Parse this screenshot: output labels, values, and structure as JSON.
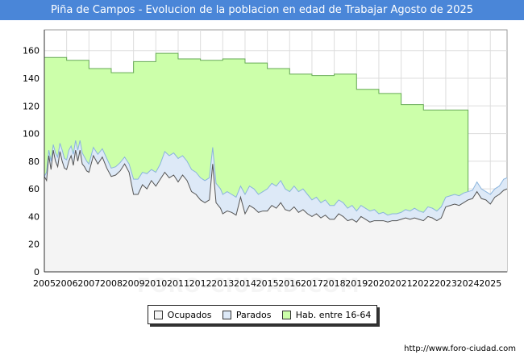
{
  "title": "Piña de Campos - Evolucion de la poblacion en edad de Trabajar Agosto de 2025",
  "watermark": "FORO-CIUDAD.COM",
  "source_url": "http://www.foro-ciudad.com",
  "colors": {
    "title_bg": "#4a86d8",
    "hab": "#ccffaa",
    "hab_line": "#66aa55",
    "parados": "#dde9f7",
    "parados_line": "#8ab4dd",
    "ocupados": "#f4f4f4",
    "ocupados_line": "#555555"
  },
  "chart_data": {
    "type": "area",
    "title": "Piña de Campos - Evolucion de la poblacion en edad de Trabajar Agosto de 2025",
    "x_range": [
      2005.0,
      2025.75
    ],
    "ylim": [
      0,
      175
    ],
    "y_ticks": [
      0,
      20,
      40,
      60,
      80,
      100,
      120,
      140,
      160
    ],
    "x_ticks": [
      "2005",
      "2006",
      "2007",
      "2008",
      "2009",
      "2010",
      "2011",
      "2012",
      "2013",
      "2014",
      "2015",
      "2016",
      "2017",
      "2018",
      "2019",
      "2020",
      "2021",
      "2022",
      "2023",
      "2024",
      "2025"
    ],
    "grid": true,
    "legend_position": "bottom",
    "series": [
      {
        "name": "Hab. entre 16-64",
        "step": true,
        "points": [
          [
            2005.0,
            155
          ],
          [
            2006.0,
            153
          ],
          [
            2007.0,
            147
          ],
          [
            2008.0,
            144
          ],
          [
            2009.0,
            152
          ],
          [
            2010.0,
            158
          ],
          [
            2011.0,
            154
          ],
          [
            2012.0,
            153
          ],
          [
            2013.0,
            154
          ],
          [
            2014.0,
            151
          ],
          [
            2015.0,
            147
          ],
          [
            2016.0,
            143
          ],
          [
            2017.0,
            142
          ],
          [
            2018.0,
            143
          ],
          [
            2019.0,
            132
          ],
          [
            2020.0,
            129
          ],
          [
            2021.0,
            121
          ],
          [
            2022.0,
            117
          ],
          [
            2023.0,
            117
          ]
        ],
        "end_x": 2024.0
      },
      {
        "name": "Parados",
        "points": [
          [
            2005.0,
            69
          ],
          [
            2005.1,
            72
          ],
          [
            2005.2,
            88
          ],
          [
            2005.3,
            80
          ],
          [
            2005.4,
            92
          ],
          [
            2005.5,
            86
          ],
          [
            2005.6,
            83
          ],
          [
            2005.7,
            93
          ],
          [
            2005.8,
            88
          ],
          [
            2005.9,
            82
          ],
          [
            2006.0,
            81
          ],
          [
            2006.1,
            88
          ],
          [
            2006.2,
            91
          ],
          [
            2006.3,
            85
          ],
          [
            2006.4,
            95
          ],
          [
            2006.5,
            88
          ],
          [
            2006.6,
            95
          ],
          [
            2006.7,
            86
          ],
          [
            2006.8,
            83
          ],
          [
            2006.9,
            80
          ],
          [
            2007.0,
            78
          ],
          [
            2007.2,
            90
          ],
          [
            2007.4,
            85
          ],
          [
            2007.6,
            89
          ],
          [
            2007.8,
            82
          ],
          [
            2008.0,
            75
          ],
          [
            2008.2,
            76
          ],
          [
            2008.4,
            79
          ],
          [
            2008.6,
            83
          ],
          [
            2008.8,
            78
          ],
          [
            2009.0,
            67
          ],
          [
            2009.2,
            67
          ],
          [
            2009.4,
            72
          ],
          [
            2009.6,
            71
          ],
          [
            2009.8,
            74
          ],
          [
            2010.0,
            72
          ],
          [
            2010.2,
            78
          ],
          [
            2010.4,
            87
          ],
          [
            2010.6,
            84
          ],
          [
            2010.8,
            86
          ],
          [
            2011.0,
            82
          ],
          [
            2011.2,
            84
          ],
          [
            2011.4,
            80
          ],
          [
            2011.6,
            74
          ],
          [
            2011.8,
            72
          ],
          [
            2012.0,
            68
          ],
          [
            2012.2,
            66
          ],
          [
            2012.4,
            68
          ],
          [
            2012.55,
            90
          ],
          [
            2012.7,
            64
          ],
          [
            2012.9,
            60
          ],
          [
            2013.0,
            56
          ],
          [
            2013.2,
            58
          ],
          [
            2013.4,
            56
          ],
          [
            2013.6,
            54
          ],
          [
            2013.8,
            62
          ],
          [
            2014.0,
            56
          ],
          [
            2014.2,
            62
          ],
          [
            2014.4,
            60
          ],
          [
            2014.6,
            56
          ],
          [
            2014.8,
            58
          ],
          [
            2015.0,
            60
          ],
          [
            2015.2,
            64
          ],
          [
            2015.4,
            62
          ],
          [
            2015.6,
            66
          ],
          [
            2015.8,
            60
          ],
          [
            2016.0,
            58
          ],
          [
            2016.2,
            62
          ],
          [
            2016.4,
            58
          ],
          [
            2016.6,
            60
          ],
          [
            2016.8,
            56
          ],
          [
            2017.0,
            52
          ],
          [
            2017.2,
            54
          ],
          [
            2017.4,
            50
          ],
          [
            2017.6,
            52
          ],
          [
            2017.8,
            48
          ],
          [
            2018.0,
            48
          ],
          [
            2018.2,
            52
          ],
          [
            2018.4,
            50
          ],
          [
            2018.6,
            46
          ],
          [
            2018.8,
            48
          ],
          [
            2019.0,
            44
          ],
          [
            2019.2,
            48
          ],
          [
            2019.4,
            46
          ],
          [
            2019.6,
            44
          ],
          [
            2019.8,
            45
          ],
          [
            2020.0,
            42
          ],
          [
            2020.2,
            43
          ],
          [
            2020.4,
            41
          ],
          [
            2020.6,
            42
          ],
          [
            2020.8,
            42
          ],
          [
            2021.0,
            43
          ],
          [
            2021.2,
            45
          ],
          [
            2021.4,
            44
          ],
          [
            2021.6,
            46
          ],
          [
            2021.8,
            44
          ],
          [
            2022.0,
            43
          ],
          [
            2022.2,
            47
          ],
          [
            2022.4,
            46
          ],
          [
            2022.6,
            44
          ],
          [
            2022.8,
            47
          ],
          [
            2023.0,
            54
          ],
          [
            2023.2,
            55
          ],
          [
            2023.4,
            56
          ],
          [
            2023.6,
            55
          ],
          [
            2023.8,
            57
          ],
          [
            2024.0,
            58
          ],
          [
            2024.2,
            59
          ],
          [
            2024.4,
            65
          ],
          [
            2024.6,
            60
          ],
          [
            2024.8,
            58
          ],
          [
            2025.0,
            56
          ],
          [
            2025.2,
            60
          ],
          [
            2025.4,
            62
          ],
          [
            2025.6,
            67
          ],
          [
            2025.75,
            68
          ]
        ]
      },
      {
        "name": "Ocupados",
        "points": [
          [
            2005.0,
            69
          ],
          [
            2005.1,
            66
          ],
          [
            2005.2,
            84
          ],
          [
            2005.3,
            74
          ],
          [
            2005.4,
            88
          ],
          [
            2005.5,
            80
          ],
          [
            2005.6,
            76
          ],
          [
            2005.7,
            87
          ],
          [
            2005.8,
            80
          ],
          [
            2005.9,
            75
          ],
          [
            2006.0,
            74
          ],
          [
            2006.1,
            80
          ],
          [
            2006.2,
            84
          ],
          [
            2006.3,
            77
          ],
          [
            2006.4,
            88
          ],
          [
            2006.5,
            80
          ],
          [
            2006.6,
            88
          ],
          [
            2006.7,
            78
          ],
          [
            2006.8,
            76
          ],
          [
            2006.9,
            73
          ],
          [
            2007.0,
            72
          ],
          [
            2007.2,
            84
          ],
          [
            2007.4,
            78
          ],
          [
            2007.6,
            83
          ],
          [
            2007.8,
            75
          ],
          [
            2008.0,
            69
          ],
          [
            2008.2,
            70
          ],
          [
            2008.4,
            73
          ],
          [
            2008.6,
            78
          ],
          [
            2008.8,
            72
          ],
          [
            2009.0,
            56
          ],
          [
            2009.2,
            56
          ],
          [
            2009.4,
            63
          ],
          [
            2009.6,
            60
          ],
          [
            2009.8,
            66
          ],
          [
            2010.0,
            62
          ],
          [
            2010.2,
            67
          ],
          [
            2010.4,
            72
          ],
          [
            2010.6,
            68
          ],
          [
            2010.8,
            70
          ],
          [
            2011.0,
            65
          ],
          [
            2011.2,
            70
          ],
          [
            2011.4,
            66
          ],
          [
            2011.6,
            58
          ],
          [
            2011.8,
            56
          ],
          [
            2012.0,
            52
          ],
          [
            2012.2,
            50
          ],
          [
            2012.4,
            52
          ],
          [
            2012.55,
            78
          ],
          [
            2012.7,
            50
          ],
          [
            2012.9,
            46
          ],
          [
            2013.0,
            42
          ],
          [
            2013.2,
            44
          ],
          [
            2013.4,
            43
          ],
          [
            2013.6,
            41
          ],
          [
            2013.8,
            54
          ],
          [
            2014.0,
            42
          ],
          [
            2014.2,
            48
          ],
          [
            2014.4,
            46
          ],
          [
            2014.6,
            43
          ],
          [
            2014.8,
            44
          ],
          [
            2015.0,
            44
          ],
          [
            2015.2,
            48
          ],
          [
            2015.4,
            46
          ],
          [
            2015.6,
            50
          ],
          [
            2015.8,
            45
          ],
          [
            2016.0,
            44
          ],
          [
            2016.2,
            47
          ],
          [
            2016.4,
            43
          ],
          [
            2016.6,
            45
          ],
          [
            2016.8,
            42
          ],
          [
            2017.0,
            40
          ],
          [
            2017.2,
            42
          ],
          [
            2017.4,
            39
          ],
          [
            2017.6,
            41
          ],
          [
            2017.8,
            38
          ],
          [
            2018.0,
            38
          ],
          [
            2018.2,
            42
          ],
          [
            2018.4,
            40
          ],
          [
            2018.6,
            37
          ],
          [
            2018.8,
            38
          ],
          [
            2019.0,
            36
          ],
          [
            2019.2,
            40
          ],
          [
            2019.4,
            38
          ],
          [
            2019.6,
            36
          ],
          [
            2019.8,
            37
          ],
          [
            2020.0,
            37
          ],
          [
            2020.2,
            37
          ],
          [
            2020.4,
            36
          ],
          [
            2020.6,
            37
          ],
          [
            2020.8,
            37
          ],
          [
            2021.0,
            38
          ],
          [
            2021.2,
            39
          ],
          [
            2021.4,
            38
          ],
          [
            2021.6,
            39
          ],
          [
            2021.8,
            38
          ],
          [
            2022.0,
            37
          ],
          [
            2022.2,
            40
          ],
          [
            2022.4,
            39
          ],
          [
            2022.6,
            37
          ],
          [
            2022.8,
            39
          ],
          [
            2023.0,
            47
          ],
          [
            2023.2,
            48
          ],
          [
            2023.4,
            49
          ],
          [
            2023.6,
            48
          ],
          [
            2023.8,
            50
          ],
          [
            2024.0,
            52
          ],
          [
            2024.2,
            53
          ],
          [
            2024.4,
            58
          ],
          [
            2024.6,
            53
          ],
          [
            2024.8,
            52
          ],
          [
            2025.0,
            49
          ],
          [
            2025.2,
            54
          ],
          [
            2025.4,
            56
          ],
          [
            2025.6,
            59
          ],
          [
            2025.75,
            60
          ]
        ]
      }
    ],
    "legend": [
      "Ocupados",
      "Parados",
      "Hab. entre 16-64"
    ]
  }
}
